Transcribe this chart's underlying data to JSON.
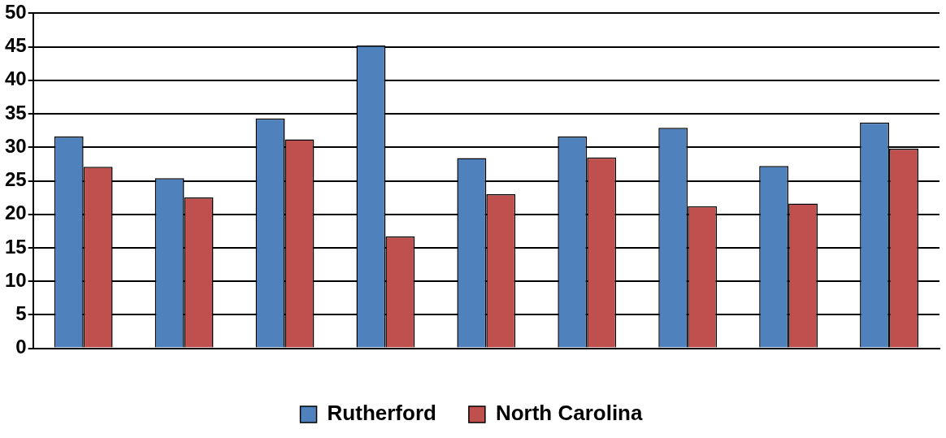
{
  "chart_data": {
    "type": "bar",
    "categories": [
      null,
      null,
      null,
      null,
      null,
      null,
      null,
      null,
      null
    ],
    "series": [
      {
        "name": "Rutherford",
        "color": "#4f81bd",
        "values": [
          31.6,
          25.4,
          34.3,
          45.2,
          28.4,
          31.6,
          32.9,
          27.2,
          33.7
        ]
      },
      {
        "name": "North Carolina",
        "color": "#c0504d",
        "values": [
          27.1,
          22.5,
          31.2,
          16.7,
          23.0,
          28.5,
          21.2,
          21.6,
          29.8
        ]
      }
    ],
    "ylim": [
      0,
      50
    ],
    "yticks": [
      0,
      5,
      10,
      15,
      20,
      25,
      30,
      35,
      40,
      45,
      50
    ],
    "grid": "y",
    "legend": "bottom"
  }
}
